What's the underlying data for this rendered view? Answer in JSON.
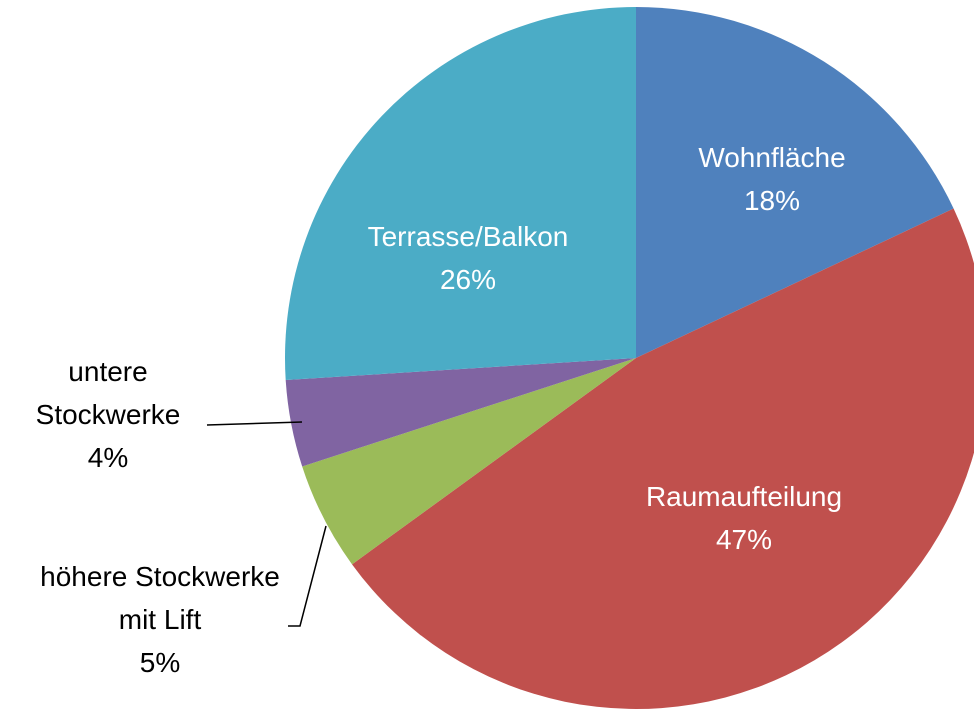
{
  "chart_data": {
    "type": "pie",
    "categories": [
      "Wohnfläche",
      "Raumaufteilung",
      "höhere Stockwerke mit Lift",
      "untere Stockwerke",
      "Terrasse/Balkon"
    ],
    "values": [
      18,
      47,
      5,
      4,
      26
    ],
    "value_labels": [
      "18%",
      "47%",
      "5%",
      "4%",
      "26%"
    ],
    "colors": [
      "#4f81bd",
      "#c0504d",
      "#9bbb59",
      "#8064a2",
      "#4bacc6"
    ]
  }
}
